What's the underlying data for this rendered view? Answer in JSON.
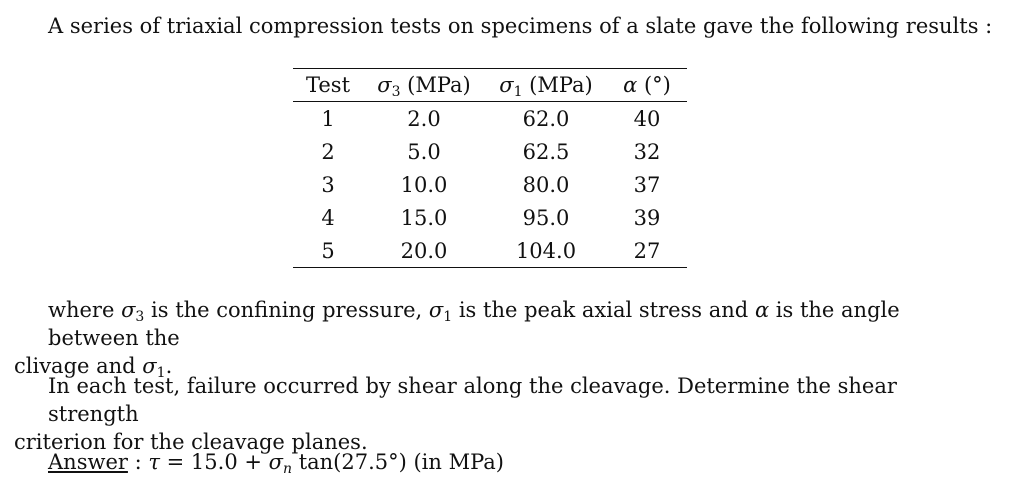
{
  "intro": "A series of triaxial compression tests on specimens of a slate gave the following results :",
  "table": {
    "headers": {
      "test": "Test",
      "sigma3_sym": "σ",
      "sigma3_sub": "3",
      "sigma3_unit": " (MPa)",
      "sigma1_sym": "σ",
      "sigma1_sub": "1",
      "sigma1_unit": " (MPa)",
      "alpha_sym": "α",
      "alpha_unit": " (°)"
    },
    "rows": [
      {
        "test": "1",
        "sigma3": "2.0",
        "sigma1": "62.0",
        "alpha": "40"
      },
      {
        "test": "2",
        "sigma3": "5.0",
        "sigma1": "62.5",
        "alpha": "32"
      },
      {
        "test": "3",
        "sigma3": "10.0",
        "sigma1": "80.0",
        "alpha": "37"
      },
      {
        "test": "4",
        "sigma3": "15.0",
        "sigma1": "95.0",
        "alpha": "39"
      },
      {
        "test": "5",
        "sigma3": "20.0",
        "sigma1": "104.0",
        "alpha": "27"
      }
    ]
  },
  "where": {
    "t1": "where ",
    "s3": "σ",
    "s3sub": "3",
    "t2": " is the confining pressure, ",
    "s1": "σ",
    "s1sub": "1",
    "t3": " is the peak axial stress and ",
    "alpha": "α",
    "t4": " is the angle between the",
    "t5": "clivage and ",
    "s1b": "σ",
    "s1bsub": "1",
    "t6": "."
  },
  "failure": {
    "line1": "In each test, failure occurred by shear along the cleavage. Determine the shear strength",
    "line2": "criterion for the cleavage planes."
  },
  "answer": {
    "label": "Answer",
    "colon": " : ",
    "tau": "τ",
    "eq1": " = 15.0 + ",
    "sigma": "σ",
    "sub": "n",
    "eq2": " tan(27.5°) (in MPa)"
  }
}
